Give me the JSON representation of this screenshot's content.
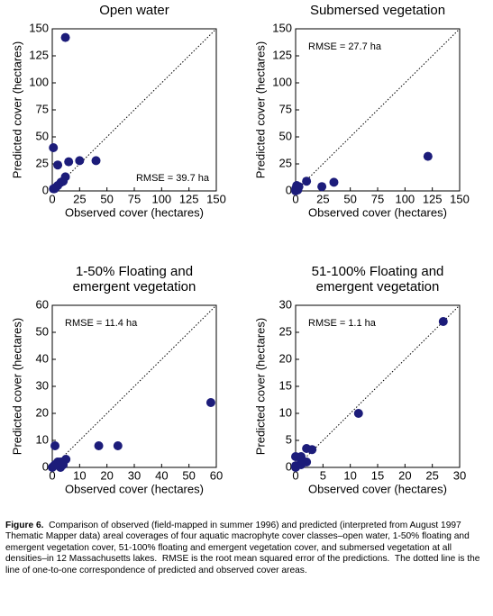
{
  "chart_data": [
    {
      "type": "scatter",
      "title": [
        "Open water"
      ],
      "xlabel": "Observed cover (hectares)",
      "ylabel": "Predicted cover (hectares)",
      "annotation": "RMSE = 39.7 ha",
      "annotation_corner": "lower right",
      "identity_line": true,
      "grid": false,
      "color": "#1c1c7a",
      "xlim": [
        0,
        150
      ],
      "ylim": [
        0,
        150
      ],
      "xticks": [
        0,
        25,
        50,
        75,
        100,
        125,
        150
      ],
      "yticks": [
        0,
        25,
        50,
        75,
        100,
        125,
        150
      ],
      "x": [
        12,
        1,
        5,
        15,
        25,
        40,
        12,
        8,
        5,
        3,
        2,
        1,
        10
      ],
      "values": [
        142,
        40,
        24,
        27,
        28,
        28,
        13,
        8,
        5,
        3,
        2,
        2,
        9
      ]
    },
    {
      "type": "scatter",
      "title": [
        "Submersed vegetation"
      ],
      "xlabel": "Observed cover (hectares)",
      "ylabel": "Predicted cover (hectares)",
      "annotation": "RMSE = 27.7 ha",
      "annotation_corner": "upper left",
      "identity_line": true,
      "grid": false,
      "color": "#1c1c7a",
      "xlim": [
        0,
        150
      ],
      "ylim": [
        0,
        150
      ],
      "xticks": [
        0,
        25,
        50,
        75,
        100,
        125,
        150
      ],
      "yticks": [
        0,
        25,
        50,
        75,
        100,
        125,
        150
      ],
      "x": [
        0,
        1,
        2,
        3,
        10,
        24,
        35,
        121,
        0,
        1,
        2
      ],
      "values": [
        2,
        5,
        3,
        4,
        9,
        4,
        8,
        32,
        0,
        1,
        1
      ]
    },
    {
      "type": "scatter",
      "title": [
        "1-50% Floating and",
        "emergent vegetation"
      ],
      "xlabel": "Observed cover (hectares)",
      "ylabel": "Predicted cover (hectares)",
      "annotation": "RMSE = 11.4 ha",
      "annotation_corner": "upper left",
      "identity_line": true,
      "grid": false,
      "color": "#1c1c7a",
      "xlim": [
        0,
        60
      ],
      "ylim": [
        0,
        60
      ],
      "xticks": [
        0,
        10,
        20,
        30,
        40,
        50,
        60
      ],
      "yticks": [
        0,
        10,
        20,
        30,
        40,
        50,
        60
      ],
      "x": [
        1,
        2,
        1,
        0,
        3,
        5,
        17,
        24,
        58,
        3,
        4,
        0.5
      ],
      "values": [
        8,
        2,
        1,
        0,
        2,
        3,
        8,
        8,
        24,
        0,
        1,
        0.5
      ]
    },
    {
      "type": "scatter",
      "title": [
        "51-100% Floating and",
        "emergent vegetation"
      ],
      "xlabel": "Observed cover (hectares)",
      "ylabel": "Predicted cover (hectares)",
      "annotation": "RMSE = 1.1 ha",
      "annotation_corner": "upper left",
      "identity_line": true,
      "grid": false,
      "color": "#1c1c7a",
      "xlim": [
        0,
        30
      ],
      "ylim": [
        0,
        30
      ],
      "xticks": [
        0,
        5,
        10,
        15,
        20,
        25,
        30
      ],
      "yticks": [
        0,
        5,
        10,
        15,
        20,
        25,
        30
      ],
      "x": [
        0,
        1,
        2,
        3,
        1,
        2,
        0,
        1,
        11.5,
        27,
        0
      ],
      "values": [
        2,
        2,
        3.5,
        3.3,
        1,
        1,
        0,
        0.5,
        10,
        27,
        0.3
      ]
    }
  ],
  "caption": {
    "label": "Figure 6.",
    "text": "Comparison of observed (field-mapped in summer 1996) and predicted (interpreted from August 1997 Thematic Mapper data) areal coverages of four aquatic macrophyte cover classes–open water, 1-50% floating and emergent vegetation cover, 51-100% floating and emergent vegetation cover, and submersed vegetation at all densities–in 12 Massachusetts lakes.  RMSE is the root mean squared error of the predictions.  The dotted line is the line of one-to-one correspondence of predicted and observed cover areas."
  }
}
